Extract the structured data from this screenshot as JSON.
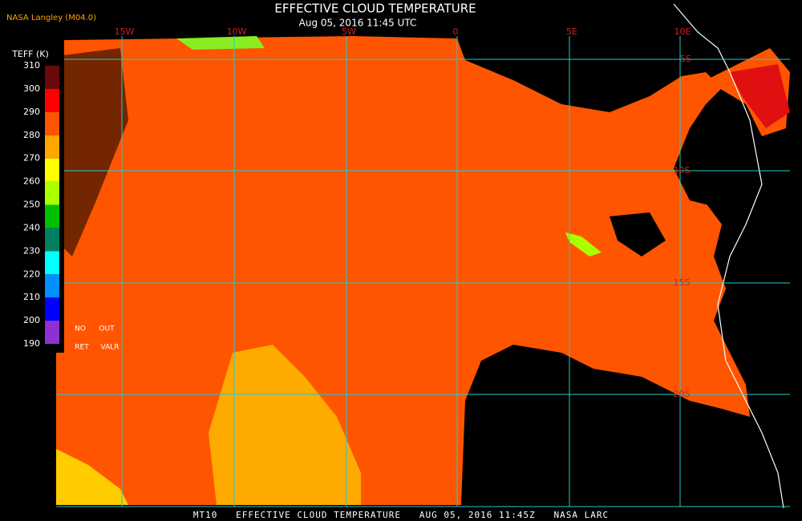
{
  "header": {
    "brand": "NASA Langley (M04.0)",
    "title": "EFFECTIVE CLOUD TEMPERATURE",
    "subtitle": "Aug 05, 2016 11:45 UTC"
  },
  "longitude_labels": [
    "15W",
    "10W",
    "5W",
    "0",
    "5E",
    "10E"
  ],
  "latitude_labels": [
    "5S",
    "10S",
    "15S",
    "20S"
  ],
  "colorbar": {
    "title": "TEFF (K)",
    "ticks": [
      310,
      300,
      290,
      280,
      270,
      260,
      250,
      240,
      230,
      220,
      210,
      200,
      190
    ],
    "colors": [
      "#6b0a0a",
      "#ff0000",
      "#ff5500",
      "#ffa500",
      "#ffff00",
      "#aaff00",
      "#00c000",
      "#008060",
      "#00ffff",
      "#0090ff",
      "#0000ff",
      "#9030d0"
    ],
    "notes": [
      "NO",
      "OUT",
      "RET",
      "VALR"
    ]
  },
  "footer": "MT10   EFFECTIVE CLOUD TEMPERATURE   AUG 05, 2016 11:45Z   NASA LARC"
}
